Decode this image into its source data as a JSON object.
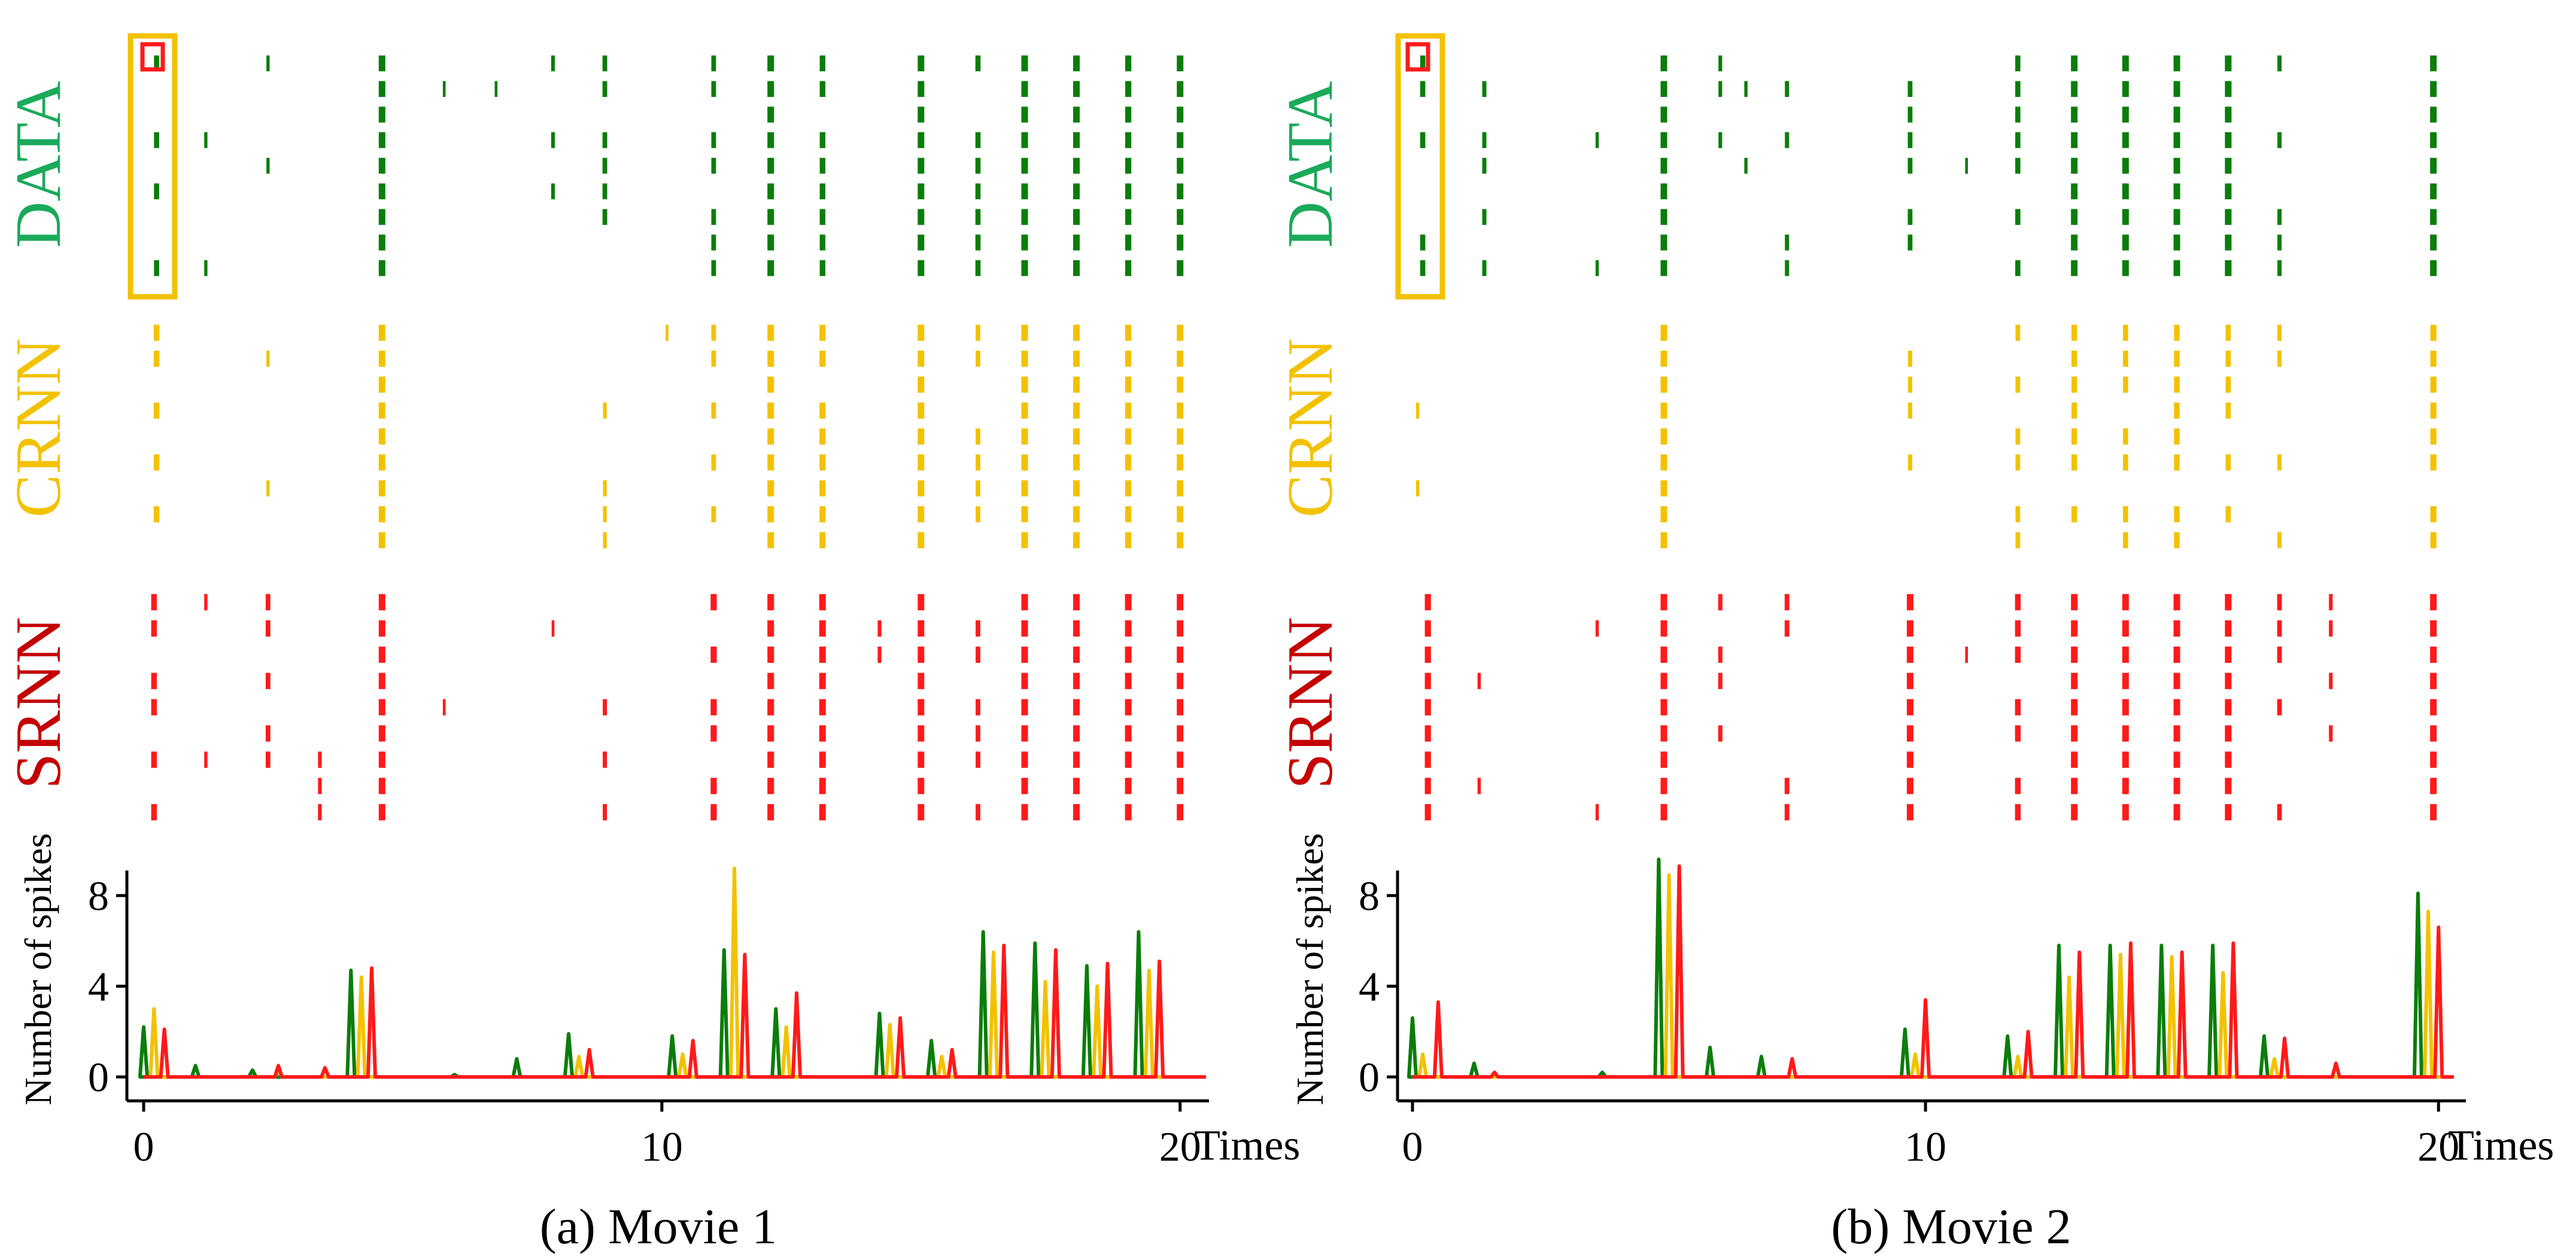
{
  "colors": {
    "data": "#0a7d0a",
    "crnn": "#f2c200",
    "srnn": "#ff1a1a",
    "data_label": "#1aaa5a",
    "crnn_label": "#f2c200",
    "srnn_label": "#c40000",
    "highlight_box": "#f2c200",
    "highlight_cell": "#ff1a1a",
    "axis": "#000000"
  },
  "row_labels": {
    "data": "DATA",
    "crnn": "CRNN",
    "srnn": "SRNN"
  },
  "yaxis_label": "Number of spikes",
  "xaxis_unit": "Times",
  "chart_data": [
    {
      "type": "raster_and_line",
      "caption": "(a) Movie 1",
      "x_range": [
        0,
        20.5
      ],
      "x_ticks": [
        0,
        10,
        20
      ],
      "y_range": [
        0,
        9.5
      ],
      "y_ticks": [
        0,
        4,
        8
      ],
      "neurons": 9,
      "events": [
        0.25,
        1.2,
        2.4,
        4.6,
        6.9,
        7.9,
        8.9,
        11.0,
        12.1,
        13.1,
        15.0,
        16.1,
        17.0,
        18.0,
        19.0,
        20.0
      ],
      "raster": {
        "DATA": [
          [
            0.25,
            4,
            0.7
          ],
          [
            1.2,
            2,
            0.3
          ],
          [
            2.4,
            2,
            0.3
          ],
          [
            4.6,
            9,
            1.0
          ],
          [
            5.8,
            1,
            0.2
          ],
          [
            6.8,
            1,
            0.2
          ],
          [
            7.9,
            3,
            0.4
          ],
          [
            8.9,
            6,
            0.6
          ],
          [
            11.0,
            7,
            0.6
          ],
          [
            12.1,
            9,
            1.0
          ],
          [
            13.1,
            8,
            0.8
          ],
          [
            15.0,
            9,
            1.0
          ],
          [
            16.1,
            7,
            0.7
          ],
          [
            17.0,
            9,
            1.0
          ],
          [
            18.0,
            9,
            1.0
          ],
          [
            19.0,
            9,
            0.9
          ],
          [
            20.0,
            9,
            1.0
          ]
        ],
        "CRNN": [
          [
            0.25,
            5,
            0.8
          ],
          [
            2.4,
            2,
            0.3
          ],
          [
            4.6,
            9,
            1.0
          ],
          [
            8.9,
            4,
            0.4
          ],
          [
            10.1,
            1,
            0.2
          ],
          [
            11.0,
            5,
            0.6
          ],
          [
            12.1,
            9,
            1.0
          ],
          [
            13.1,
            8,
            0.9
          ],
          [
            15.0,
            9,
            1.0
          ],
          [
            16.1,
            6,
            0.6
          ],
          [
            17.0,
            9,
            1.0
          ],
          [
            18.0,
            9,
            1.0
          ],
          [
            19.0,
            9,
            0.9
          ],
          [
            20.0,
            9,
            1.0
          ]
        ],
        "SRNN": [
          [
            0.2,
            6,
            0.8
          ],
          [
            1.2,
            2,
            0.3
          ],
          [
            2.4,
            5,
            0.6
          ],
          [
            3.4,
            3,
            0.4
          ],
          [
            4.6,
            9,
            1.0
          ],
          [
            5.8,
            1,
            0.2
          ],
          [
            7.9,
            1,
            0.2
          ],
          [
            8.9,
            3,
            0.5
          ],
          [
            11.0,
            6,
            0.9
          ],
          [
            12.1,
            9,
            1.0
          ],
          [
            13.1,
            9,
            1.0
          ],
          [
            14.2,
            2,
            0.4
          ],
          [
            15.0,
            9,
            1.0
          ],
          [
            16.1,
            6,
            0.6
          ],
          [
            17.0,
            9,
            1.0
          ],
          [
            18.0,
            9,
            1.0
          ],
          [
            19.0,
            9,
            1.0
          ],
          [
            20.0,
            9,
            1.0
          ]
        ]
      },
      "series": [
        {
          "name": "DATA",
          "peaks": [
            [
              0.0,
              2.2
            ],
            [
              1.0,
              0.5
            ],
            [
              2.1,
              0.3
            ],
            [
              4.0,
              4.7
            ],
            [
              6.0,
              0.1
            ],
            [
              7.2,
              0.8
            ],
            [
              8.2,
              1.9
            ],
            [
              10.2,
              1.8
            ],
            [
              11.2,
              5.6
            ],
            [
              12.2,
              3.0
            ],
            [
              14.2,
              2.8
            ],
            [
              15.2,
              1.6
            ],
            [
              16.2,
              6.4
            ],
            [
              17.2,
              5.9
            ],
            [
              18.2,
              4.9
            ],
            [
              19.2,
              6.4
            ]
          ]
        },
        {
          "name": "CRNN",
          "peaks": [
            [
              0.2,
              3.0
            ],
            [
              2.6,
              0.3
            ],
            [
              4.2,
              4.4
            ],
            [
              8.4,
              0.9
            ],
            [
              10.4,
              1.0
            ],
            [
              11.4,
              9.2
            ],
            [
              12.4,
              2.2
            ],
            [
              14.4,
              2.3
            ],
            [
              15.4,
              0.9
            ],
            [
              16.4,
              5.5
            ],
            [
              17.4,
              4.2
            ],
            [
              18.4,
              4.0
            ],
            [
              19.4,
              4.7
            ]
          ]
        },
        {
          "name": "SRNN",
          "peaks": [
            [
              0.4,
              2.1
            ],
            [
              2.6,
              0.5
            ],
            [
              3.5,
              0.4
            ],
            [
              4.4,
              4.8
            ],
            [
              8.6,
              1.2
            ],
            [
              10.6,
              1.6
            ],
            [
              11.6,
              5.4
            ],
            [
              12.6,
              3.7
            ],
            [
              14.6,
              2.6
            ],
            [
              15.6,
              1.2
            ],
            [
              16.6,
              5.8
            ],
            [
              17.6,
              5.6
            ],
            [
              18.6,
              5.0
            ],
            [
              19.6,
              5.1
            ]
          ]
        }
      ]
    },
    {
      "type": "raster_and_line",
      "caption": "(b) Movie 2",
      "x_range": [
        0,
        20.3
      ],
      "x_ticks": [
        0,
        10,
        20
      ],
      "y_range": [
        0,
        9.5
      ],
      "y_ticks": [
        0,
        4,
        8
      ],
      "neurons": 9,
      "events": [
        0.2,
        1.4,
        4.9,
        6.5,
        7.2,
        9.7,
        11.8,
        12.9,
        13.9,
        14.9,
        15.9,
        16.9,
        19.9
      ],
      "raster": {
        "DATA": [
          [
            0.2,
            5,
            0.7
          ],
          [
            1.4,
            5,
            0.5
          ],
          [
            3.6,
            2,
            0.3
          ],
          [
            4.9,
            9,
            1.0
          ],
          [
            6.0,
            3,
            0.4
          ],
          [
            6.5,
            2,
            0.3
          ],
          [
            7.3,
            4,
            0.5
          ],
          [
            9.7,
            6,
            0.6
          ],
          [
            10.8,
            1,
            0.2
          ],
          [
            11.8,
            7,
            0.7
          ],
          [
            12.9,
            9,
            1.0
          ],
          [
            13.9,
            9,
            1.0
          ],
          [
            14.9,
            9,
            1.0
          ],
          [
            15.9,
            9,
            1.0
          ],
          [
            16.9,
            5,
            0.5
          ],
          [
            19.9,
            9,
            1.0
          ]
        ],
        "CRNN": [
          [
            0.1,
            2,
            0.3
          ],
          [
            4.9,
            9,
            1.0
          ],
          [
            9.7,
            4,
            0.5
          ],
          [
            11.8,
            6,
            0.6
          ],
          [
            12.9,
            7,
            0.8
          ],
          [
            13.9,
            7,
            0.7
          ],
          [
            14.9,
            8,
            0.8
          ],
          [
            15.9,
            6,
            0.7
          ],
          [
            16.9,
            4,
            0.5
          ],
          [
            19.9,
            8,
            0.9
          ]
        ],
        "SRNN": [
          [
            0.3,
            9,
            0.9
          ],
          [
            1.3,
            2,
            0.3
          ],
          [
            3.6,
            2,
            0.3
          ],
          [
            4.9,
            9,
            1.0
          ],
          [
            6.0,
            4,
            0.5
          ],
          [
            7.3,
            4,
            0.6
          ],
          [
            9.7,
            9,
            1.0
          ],
          [
            10.8,
            1,
            0.2
          ],
          [
            11.8,
            7,
            0.8
          ],
          [
            12.9,
            9,
            1.0
          ],
          [
            13.9,
            9,
            1.0
          ],
          [
            14.9,
            9,
            1.0
          ],
          [
            15.9,
            9,
            1.0
          ],
          [
            16.9,
            5,
            0.6
          ],
          [
            17.9,
            4,
            0.4
          ],
          [
            19.9,
            9,
            1.0
          ]
        ]
      },
      "series": [
        {
          "name": "DATA",
          "peaks": [
            [
              0.0,
              2.6
            ],
            [
              1.2,
              0.6
            ],
            [
              3.7,
              0.2
            ],
            [
              4.8,
              9.6
            ],
            [
              5.8,
              1.3
            ],
            [
              6.8,
              0.9
            ],
            [
              9.6,
              2.1
            ],
            [
              11.6,
              1.8
            ],
            [
              12.6,
              5.8
            ],
            [
              13.6,
              5.8
            ],
            [
              14.6,
              5.8
            ],
            [
              15.6,
              5.8
            ],
            [
              16.6,
              1.8
            ],
            [
              19.6,
              8.1
            ]
          ]
        },
        {
          "name": "CRNN",
          "peaks": [
            [
              0.2,
              1.0
            ],
            [
              5.0,
              8.9
            ],
            [
              9.8,
              1.0
            ],
            [
              11.8,
              0.9
            ],
            [
              12.8,
              4.4
            ],
            [
              13.8,
              5.4
            ],
            [
              14.8,
              5.3
            ],
            [
              15.8,
              4.6
            ],
            [
              16.8,
              0.8
            ],
            [
              19.8,
              7.3
            ]
          ]
        },
        {
          "name": "SRNN",
          "peaks": [
            [
              0.5,
              3.3
            ],
            [
              1.6,
              0.2
            ],
            [
              5.2,
              9.3
            ],
            [
              7.4,
              0.8
            ],
            [
              10.0,
              3.4
            ],
            [
              12.0,
              2.0
            ],
            [
              13.0,
              5.5
            ],
            [
              14.0,
              5.9
            ],
            [
              15.0,
              5.5
            ],
            [
              16.0,
              5.9
            ],
            [
              17.0,
              1.7
            ],
            [
              18.0,
              0.6
            ],
            [
              20.0,
              6.6
            ]
          ]
        }
      ]
    }
  ]
}
